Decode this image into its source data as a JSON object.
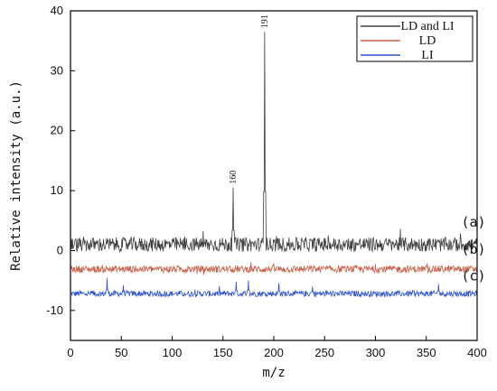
{
  "chart_data": {
    "type": "line",
    "xlabel": "m/z",
    "ylabel": "Relative intensity (a.u.)",
    "xlim": [
      0,
      400
    ],
    "ylim": [
      -15,
      40
    ],
    "xticks": [
      0,
      50,
      100,
      150,
      200,
      250,
      300,
      350,
      400
    ],
    "yticks": [
      -10,
      0,
      10,
      20,
      30,
      40
    ],
    "legend_position": "top-right",
    "series": [
      {
        "name": "LD and LI",
        "color": "#404040",
        "baseline": 1.0,
        "noise": 1.2,
        "peaks": [
          {
            "x": 160,
            "y": 10.5
          },
          {
            "x": 191,
            "y": 36.5
          }
        ]
      },
      {
        "name": "LD",
        "color": "#c8604a",
        "baseline": -3.1,
        "noise": 0.6,
        "peaks": []
      },
      {
        "name": "LI",
        "color": "#2f55cc",
        "baseline": -7.2,
        "noise": 0.5,
        "peaks": [
          {
            "x": 36,
            "y": -4.6
          },
          {
            "x": 52,
            "y": -5.8
          },
          {
            "x": 163,
            "y": -5.2
          },
          {
            "x": 175,
            "y": -5.0
          },
          {
            "x": 205,
            "y": -5.4
          },
          {
            "x": 238,
            "y": -6.0
          },
          {
            "x": 362,
            "y": -5.6
          }
        ]
      }
    ],
    "peak_labels": [
      {
        "x": 160,
        "y": 10.5,
        "text": "160"
      },
      {
        "x": 191,
        "y": 36.5,
        "text": "191"
      }
    ],
    "trace_labels": [
      {
        "text": "(a)",
        "x": 380,
        "y": 4.0
      },
      {
        "text": "(b)",
        "x": 380,
        "y": -0.5
      },
      {
        "text": "(c)",
        "x": 380,
        "y": -5.0
      }
    ]
  }
}
